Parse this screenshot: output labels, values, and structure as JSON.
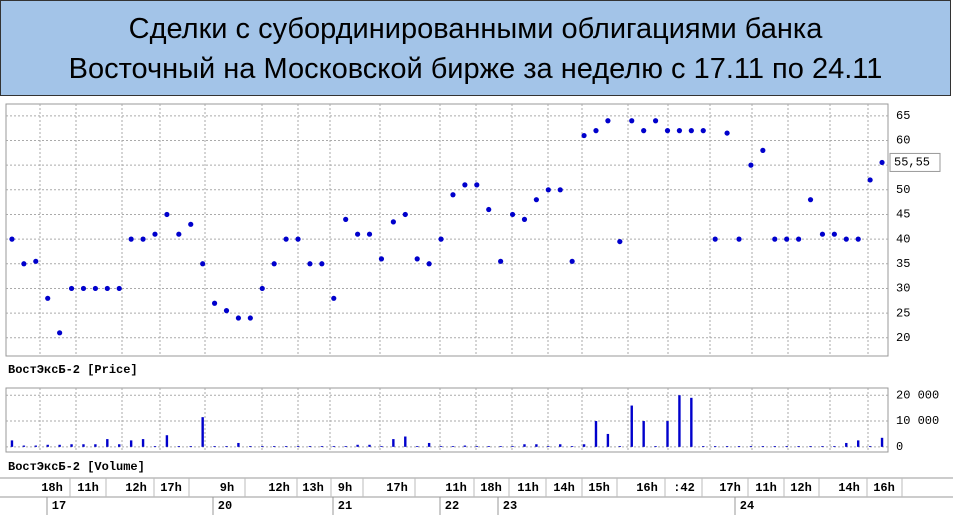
{
  "title": [
    "Сделки с субординированными облигациями банка",
    "Восточный на Московской бирже за неделю с 17.11 по 24.11"
  ],
  "x_axis": {
    "times": [
      "18h",
      "11h",
      "12h",
      "17h",
      "9h",
      "12h",
      "13h",
      "9h",
      "17h",
      "11h",
      "18h",
      "11h",
      "14h",
      "15h",
      "16h",
      ":42",
      "17h",
      "11h",
      "12h",
      "14h",
      "16h"
    ],
    "dates": [
      "17",
      "20",
      "21",
      "22",
      "23",
      "24"
    ]
  },
  "chart_data": [
    {
      "type": "scatter",
      "panel_label": "ВостЭксБ-2 [Price]",
      "color": "#0000cc",
      "values": [
        40,
        35,
        35.5,
        28,
        21,
        30,
        30,
        30,
        30,
        30,
        40,
        40,
        41,
        45,
        41,
        43,
        35,
        27,
        25.5,
        24,
        24,
        30,
        35,
        40,
        40,
        35,
        35,
        28,
        44,
        41,
        41,
        36,
        43.5,
        45,
        36,
        35,
        40,
        49,
        51,
        51,
        46,
        35.5,
        45,
        44,
        48,
        50,
        50,
        35.5,
        61,
        62,
        64,
        39.5,
        64,
        62,
        64,
        62,
        62,
        62,
        62,
        40,
        61.5,
        40,
        55,
        58,
        40,
        40,
        40,
        48,
        41,
        41,
        40,
        40,
        52,
        55.55
      ],
      "value_labels": [
        null,
        null,
        null,
        null,
        null,
        null,
        null,
        null,
        null,
        null,
        null,
        null,
        null,
        null,
        null,
        null,
        null,
        null,
        null,
        null,
        null,
        null,
        null,
        null,
        null,
        null,
        null,
        null,
        null,
        null,
        null,
        null,
        null,
        null,
        null,
        null,
        null,
        null,
        null,
        null,
        null,
        null,
        null,
        null,
        null,
        null,
        null,
        null,
        null,
        null,
        null,
        null,
        null,
        null,
        null,
        null,
        null,
        null,
        null,
        null,
        null,
        null,
        null,
        null,
        null,
        null,
        null,
        null,
        null,
        null,
        null,
        null,
        null,
        "55,55"
      ],
      "ylim": [
        16.3,
        67.4
      ],
      "yticks": [
        20,
        25,
        30,
        35,
        40,
        45,
        50,
        55,
        60,
        65
      ],
      "grid": true
    },
    {
      "type": "bar",
      "panel_label": "ВостЭксБ-2 [Volume]",
      "color": "#0000cc",
      "values": [
        2500,
        500,
        500,
        800,
        800,
        1000,
        1000,
        1000,
        3000,
        1000,
        2500,
        3000,
        300,
        4500,
        300,
        300,
        11500,
        300,
        300,
        1500,
        300,
        300,
        300,
        300,
        300,
        300,
        300,
        300,
        300,
        800,
        800,
        300,
        3000,
        4000,
        300,
        1500,
        300,
        300,
        500,
        300,
        300,
        300,
        300,
        1000,
        1000,
        300,
        1000,
        300,
        1000,
        10000,
        5000,
        300,
        16000,
        10000,
        300,
        10000,
        20000,
        19000,
        300,
        300,
        300,
        300,
        300,
        300,
        300,
        300,
        300,
        300,
        300,
        300,
        1500,
        2500,
        300,
        3500
      ],
      "ylim": [
        -2000,
        22800
      ],
      "yticks": [
        0,
        {
          "value": 10000,
          "label": "10 000"
        },
        {
          "value": 20000,
          "label": "20 000"
        }
      ],
      "grid": true
    }
  ]
}
